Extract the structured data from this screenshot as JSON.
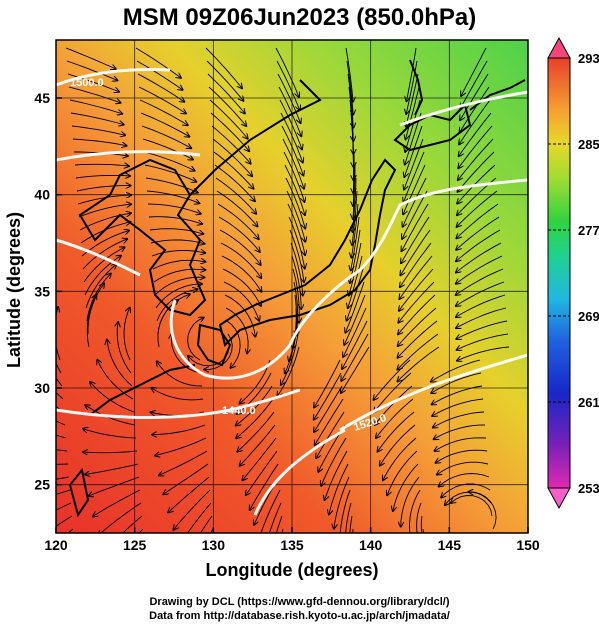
{
  "title": "MSM 09Z06Jun2023 (850.0hPa)",
  "map": {
    "xlabel": "Longitude (degrees)",
    "ylabel": "Latitude  (degrees)",
    "lon_range": [
      120,
      150
    ],
    "lat_range": [
      22.5,
      48
    ],
    "lon_ticks": [
      "120",
      "125",
      "130",
      "135",
      "140",
      "145",
      "150"
    ],
    "lat_ticks": [
      "25",
      "30",
      "35",
      "40",
      "45"
    ],
    "contour_labels": [
      "1500.0",
      "1440.0",
      "1520.0"
    ],
    "colors": {
      "frame": "#000000",
      "contour": "#ffffff",
      "coast": "#000000"
    }
  },
  "colorbar": {
    "tick_labels": [
      "293",
      "285",
      "277",
      "269",
      "261",
      "253"
    ],
    "colors": [
      "#f5457a",
      "#e84d3a",
      "#f59c38",
      "#e9d42a",
      "#7fd43a",
      "#2fd46a",
      "#2ad0c8",
      "#2a8ae0",
      "#2030c8",
      "#6a20b0",
      "#d02aa8",
      "#f560c8"
    ]
  },
  "credits": {
    "drawing": "Drawing by DCL (https://www.gfd-dennou.org/library/dcl/)",
    "data": "Data from http://database.rish.kyoto-u.ac.jp/arch/jmadata/"
  }
}
